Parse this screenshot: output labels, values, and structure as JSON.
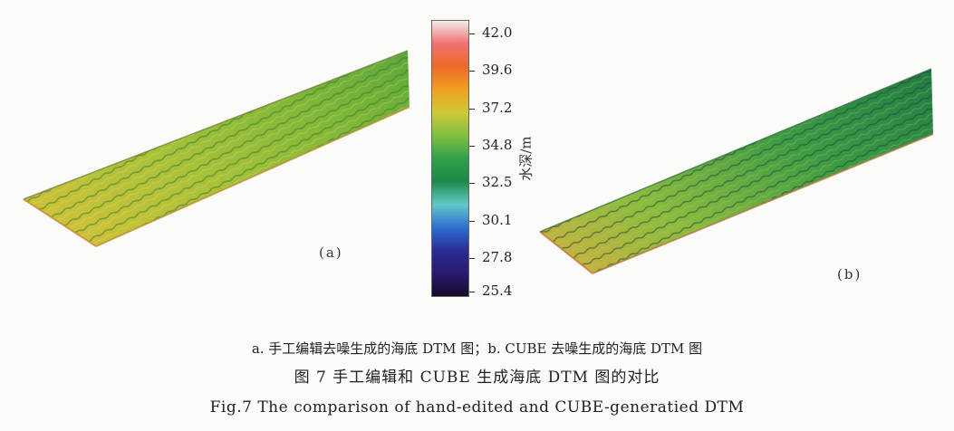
{
  "figure": {
    "panel_a_label": "(a)",
    "panel_b_label": "(b)",
    "caption_sub_cn": "a. 手工编辑去噪生成的海底 DTM 图；b. CUBE 去噪生成的海底 DTM 图",
    "caption_cn": "图 7  手工编辑和 CUBE 生成海底 DTM 图的对比",
    "caption_en": "Fig.7   The comparison of hand-edited and CUBE-generatied DTM"
  },
  "colorbar": {
    "axis_label": "水深/m",
    "ticks": [
      "42.0",
      "39.6",
      "37.2",
      "34.8",
      "32.5",
      "30.1",
      "27.8",
      "25.4"
    ],
    "min": 25.4,
    "max": 42.0,
    "colors": [
      "#f2ece8",
      "#f07070",
      "#ee6a28",
      "#f0a020",
      "#d0c838",
      "#80c040",
      "#30a04a",
      "#1e8a48",
      "#62c8c8",
      "#2f70d0",
      "#2a2c96",
      "#2a1a70",
      "#160a2a"
    ]
  },
  "surfaces": {
    "panel_a_colors": [
      "#d9c23a",
      "#a9c23a",
      "#7db63a",
      "#5aa83c"
    ],
    "panel_b_colors": [
      "#d8b040",
      "#8dbb3e",
      "#3c9a44",
      "#237a44"
    ]
  }
}
